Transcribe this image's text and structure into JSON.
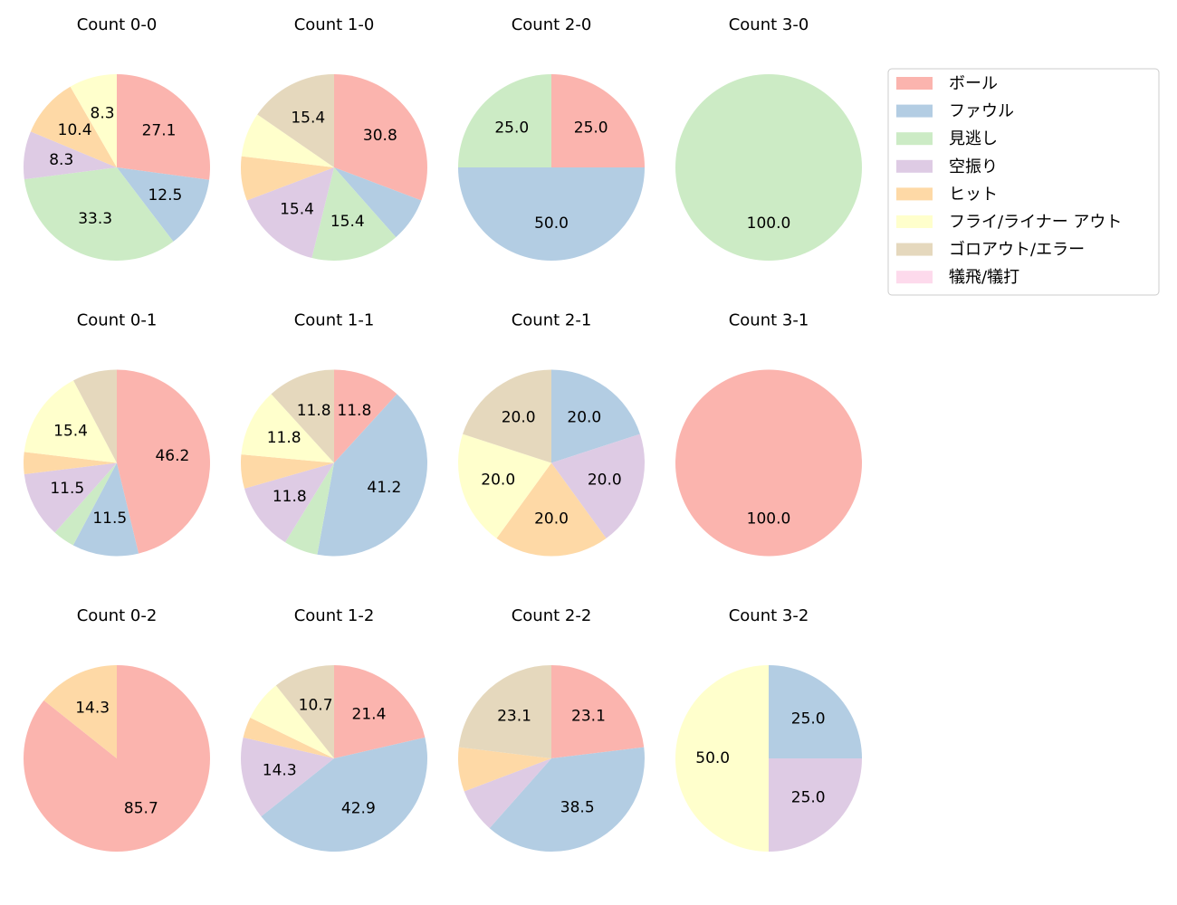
{
  "legend": {
    "labels": [
      "ボール",
      "ファウル",
      "見逃し",
      "空振り",
      "ヒット",
      "フライ/ライナー アウト",
      "ゴロアウト/エラー",
      "犠飛/犠打"
    ],
    "colors": [
      "#fbb4ae",
      "#b3cde3",
      "#ccebc5",
      "#decbe4",
      "#fed9a6",
      "#ffffcc",
      "#e5d8bd",
      "#fddaec"
    ]
  },
  "chart_data": [
    {
      "type": "pie",
      "title": "Count 0-0",
      "values": [
        27.1,
        12.5,
        33.3,
        8.3,
        10.4,
        8.3,
        0,
        0
      ],
      "value_labels": [
        "27.1",
        "12.5",
        "33.3",
        "8.3",
        "10.4",
        "8.3",
        null,
        null
      ]
    },
    {
      "type": "pie",
      "title": "Count 1-0",
      "values": [
        30.8,
        7.7,
        15.4,
        15.4,
        7.7,
        7.7,
        15.4,
        0
      ],
      "value_labels": [
        "30.8",
        null,
        "15.4",
        "15.4",
        null,
        null,
        "15.4",
        null
      ]
    },
    {
      "type": "pie",
      "title": "Count 2-0",
      "values": [
        25,
        50,
        25,
        0,
        0,
        0,
        0,
        0
      ],
      "value_labels": [
        "25.0",
        "50.0",
        "25.0",
        null,
        null,
        null,
        null,
        null
      ]
    },
    {
      "type": "pie",
      "title": "Count 3-0",
      "values": [
        0,
        0,
        100,
        0,
        0,
        0,
        0,
        0
      ],
      "value_labels": [
        null,
        null,
        "100.0",
        null,
        null,
        null,
        null,
        null
      ]
    },
    {
      "type": "pie",
      "title": "Count 0-1",
      "values": [
        46.2,
        11.5,
        3.8,
        11.5,
        3.8,
        15.4,
        7.7,
        0
      ],
      "value_labels": [
        "46.2",
        "11.5",
        null,
        "11.5",
        null,
        "15.4",
        null,
        null
      ]
    },
    {
      "type": "pie",
      "title": "Count 1-1",
      "values": [
        11.8,
        41.2,
        5.9,
        11.8,
        5.9,
        11.8,
        11.8,
        0
      ],
      "value_labels": [
        "11.8",
        "41.2",
        null,
        "11.8",
        null,
        "11.8",
        "11.8",
        null
      ]
    },
    {
      "type": "pie",
      "title": "Count 2-1",
      "values": [
        0,
        20,
        0,
        20,
        20,
        20,
        20,
        0
      ],
      "value_labels": [
        null,
        "20.0",
        null,
        "20.0",
        "20.0",
        "20.0",
        "20.0",
        null
      ]
    },
    {
      "type": "pie",
      "title": "Count 3-1",
      "values": [
        100,
        0,
        0,
        0,
        0,
        0,
        0,
        0
      ],
      "value_labels": [
        "100.0",
        null,
        null,
        null,
        null,
        null,
        null,
        null
      ]
    },
    {
      "type": "pie",
      "title": "Count 0-2",
      "values": [
        85.7,
        0,
        0,
        0,
        14.3,
        0,
        0,
        0
      ],
      "value_labels": [
        "85.7",
        null,
        null,
        null,
        "14.3",
        null,
        null,
        null
      ]
    },
    {
      "type": "pie",
      "title": "Count 1-2",
      "values": [
        21.4,
        42.9,
        0,
        14.3,
        3.6,
        7.1,
        10.7,
        0
      ],
      "value_labels": [
        "21.4",
        "42.9",
        null,
        "14.3",
        null,
        null,
        "10.7",
        null
      ]
    },
    {
      "type": "pie",
      "title": "Count 2-2",
      "values": [
        23.1,
        38.5,
        0,
        7.7,
        7.7,
        0,
        23.1,
        0
      ],
      "value_labels": [
        "23.1",
        "38.5",
        null,
        null,
        null,
        null,
        "23.1",
        null
      ]
    },
    {
      "type": "pie",
      "title": "Count 3-2",
      "values": [
        0,
        25,
        0,
        25,
        0,
        50,
        0,
        0
      ],
      "value_labels": [
        null,
        "25.0",
        null,
        "25.0",
        null,
        "50.0",
        null,
        null
      ]
    }
  ]
}
